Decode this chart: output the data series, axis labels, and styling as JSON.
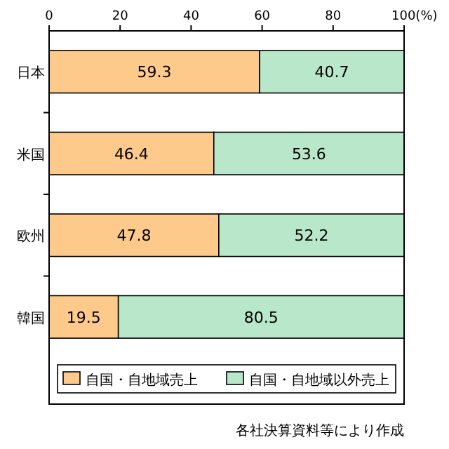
{
  "chart_data": {
    "type": "bar",
    "orientation": "horizontal",
    "stacked": true,
    "categories": [
      "日本",
      "米国",
      "欧州",
      "韓国"
    ],
    "series": [
      {
        "name": "自国・自地域売上",
        "color": "#fdca8c",
        "values": [
          59.3,
          46.4,
          47.8,
          19.5
        ]
      },
      {
        "name": "自国・自地域以外売上",
        "color": "#b9e7c9",
        "values": [
          40.7,
          53.6,
          52.2,
          80.5
        ]
      }
    ],
    "xlim": [
      0,
      100
    ],
    "xticks": [
      0,
      20,
      40,
      60,
      80,
      {
        "value": 100,
        "label": "100(%)"
      }
    ],
    "data_labels": true,
    "legend": "bottom",
    "grid": false,
    "annotations": [
      "各社決算資料等により作成"
    ]
  }
}
